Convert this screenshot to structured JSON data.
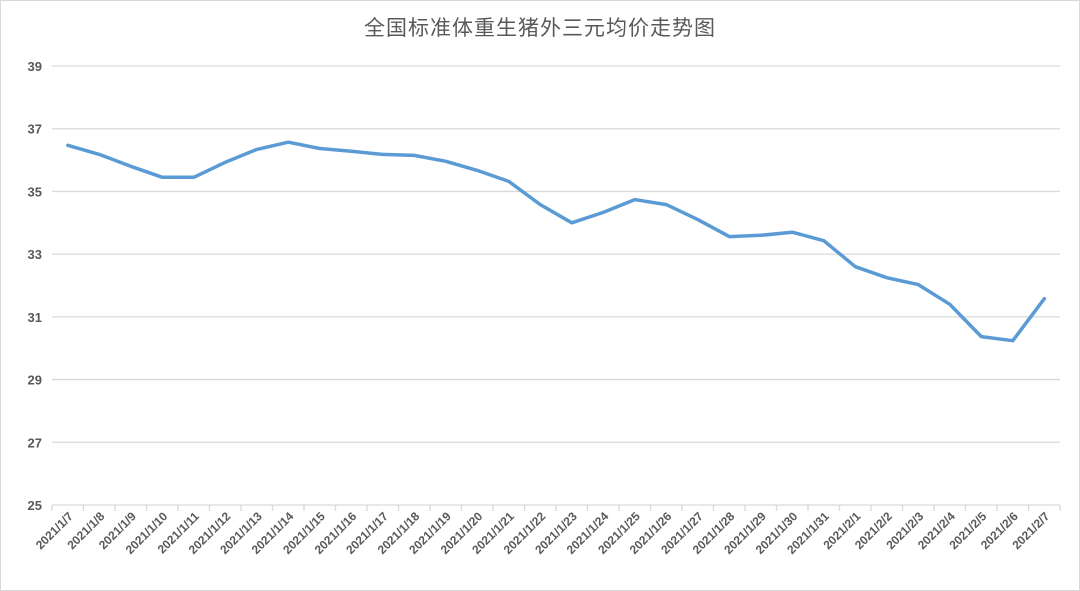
{
  "chart_data": {
    "type": "line",
    "title": "全国标准体重生猪外三元均价走势图",
    "xlabel": "",
    "ylabel": "",
    "ylim": [
      25,
      39
    ],
    "yticks": [
      25,
      27,
      29,
      31,
      33,
      35,
      37,
      39
    ],
    "grid": true,
    "legend": null,
    "line_color": "#5b9bd5",
    "categories": [
      "2021/1/7",
      "2021/1/8",
      "2021/1/9",
      "2021/1/10",
      "2021/1/11",
      "2021/1/12",
      "2021/1/13",
      "2021/1/14",
      "2021/1/15",
      "2021/1/16",
      "2021/1/17",
      "2021/1/18",
      "2021/1/19",
      "2021/1/20",
      "2021/1/21",
      "2021/1/22",
      "2021/1/23",
      "2021/1/24",
      "2021/1/25",
      "2021/1/26",
      "2021/1/27",
      "2021/1/28",
      "2021/1/29",
      "2021/1/30",
      "2021/1/31",
      "2021/2/1",
      "2021/2/2",
      "2021/2/3",
      "2021/2/4",
      "2021/2/5",
      "2021/2/6",
      "2021/2/7"
    ],
    "series": [
      {
        "name": "外三元均价",
        "values": [
          36.47,
          36.18,
          35.8,
          35.45,
          35.45,
          35.93,
          36.34,
          36.57,
          36.37,
          36.28,
          36.18,
          36.15,
          35.96,
          35.67,
          35.32,
          34.58,
          34.0,
          34.33,
          34.74,
          34.58,
          34.1,
          33.56,
          33.6,
          33.7,
          33.43,
          32.6,
          32.25,
          32.03,
          31.4,
          30.37,
          30.24,
          31.58
        ]
      }
    ]
  }
}
